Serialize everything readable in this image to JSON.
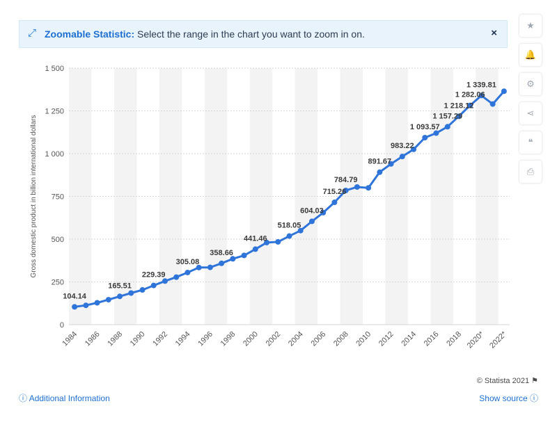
{
  "banner": {
    "title": "Zoomable Statistic:",
    "message": "Select the range in the chart you want to zoom in on.",
    "close_label": "×",
    "icon": "expand-arrows-icon"
  },
  "sidebar": [
    {
      "name": "favorite-star-icon",
      "glyph": "★"
    },
    {
      "name": "notification-bell-icon",
      "glyph": "🔔"
    },
    {
      "name": "settings-gear-icon",
      "glyph": "⚙"
    },
    {
      "name": "share-icon",
      "glyph": "⋖"
    },
    {
      "name": "cite-quote-icon",
      "glyph": "❝"
    },
    {
      "name": "print-icon",
      "glyph": "⎙"
    }
  ],
  "footer": {
    "credit": "© Statista 2021",
    "additional_info": "Additional Information",
    "show_source": "Show source"
  },
  "colors": {
    "line": "#2f74d9",
    "grid": "#d6d6d6",
    "band": "#f3f3f3",
    "label": "#3a3a3a"
  },
  "chart_data": {
    "type": "line",
    "ylabel": "Gross domestic product in billion international dollars",
    "xlabel": "",
    "ylim": [
      0,
      1500
    ],
    "y_ticks": [
      0,
      250,
      500,
      750,
      1000,
      1250,
      1500
    ],
    "y_tick_labels": [
      "0",
      "250",
      "500",
      "750",
      "1 000",
      "1 250",
      "1 500"
    ],
    "x_tick_labels": [
      "1984",
      "1986",
      "1988",
      "1990",
      "1992",
      "1994",
      "1996",
      "1998",
      "2000",
      "2002",
      "2004",
      "2006",
      "2008",
      "2010",
      "2012",
      "2014",
      "2016",
      "2018",
      "2020*",
      "2022*"
    ],
    "x": [
      1984,
      1985,
      1986,
      1987,
      1988,
      1989,
      1990,
      1991,
      1992,
      1993,
      1994,
      1995,
      1996,
      1997,
      1998,
      1999,
      2000,
      2001,
      2002,
      2003,
      2004,
      2005,
      2006,
      2007,
      2008,
      2009,
      2010,
      2011,
      2012,
      2013,
      2014,
      2015,
      2016,
      2017,
      2018,
      2019,
      2020,
      2021,
      2022
    ],
    "values": [
      104.14,
      113,
      128,
      146,
      165.51,
      185,
      203,
      229.39,
      255,
      278,
      305.08,
      334,
      335,
      358.66,
      385,
      405,
      441.46,
      480,
      484,
      518.05,
      550,
      604.03,
      655,
      715.26,
      784.79,
      805,
      800,
      891.67,
      940,
      983.22,
      1025,
      1093.57,
      1120,
      1157.29,
      1218.12,
      1282.06,
      1339.81,
      1290,
      1365
    ],
    "data_labels": [
      {
        "x": 1984,
        "text": "104.14"
      },
      {
        "x": 1988,
        "text": "165.51"
      },
      {
        "x": 1991,
        "text": "229.39"
      },
      {
        "x": 1994,
        "text": "305.08"
      },
      {
        "x": 1997,
        "text": "358.66"
      },
      {
        "x": 2000,
        "text": "441.46"
      },
      {
        "x": 2003,
        "text": "518.05"
      },
      {
        "x": 2005,
        "text": "604.03"
      },
      {
        "x": 2007,
        "text": "715.26"
      },
      {
        "x": 2008,
        "text": "784.79"
      },
      {
        "x": 2011,
        "text": "891.67"
      },
      {
        "x": 2013,
        "text": "983.22"
      },
      {
        "x": 2015,
        "text": "1 093.57"
      },
      {
        "x": 2017,
        "text": "1 157.29"
      },
      {
        "x": 2018,
        "text": "1 218.12"
      },
      {
        "x": 2019,
        "text": "1 282.06"
      },
      {
        "x": 2020,
        "text": "1 339.81"
      }
    ],
    "grid": true,
    "legend": "none"
  }
}
